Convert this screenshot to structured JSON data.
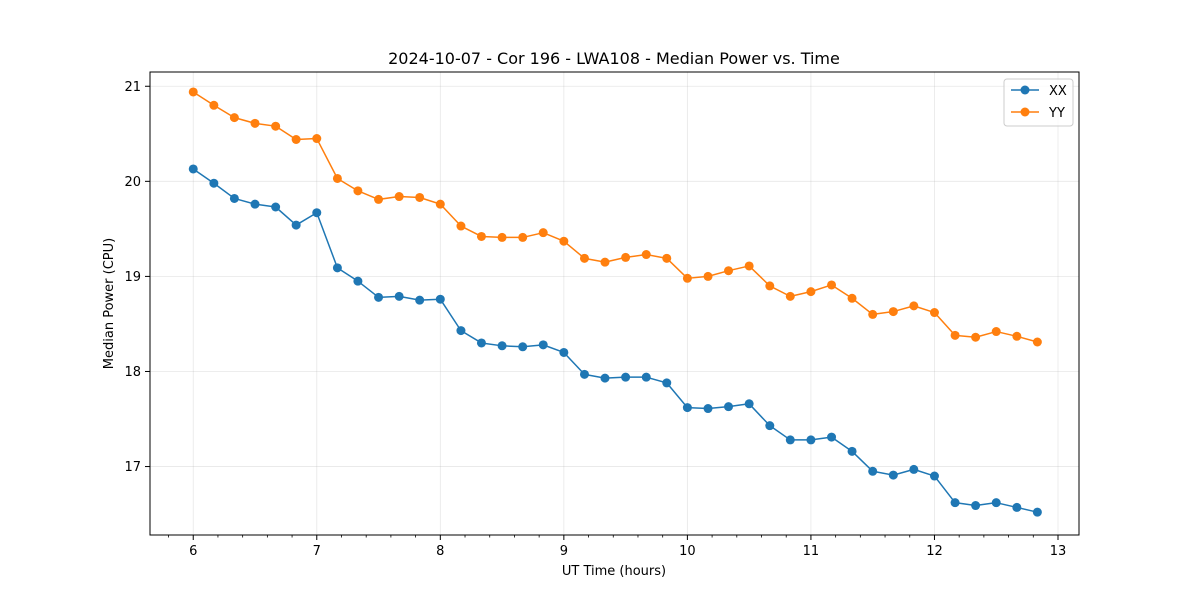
{
  "chart_data": {
    "type": "line",
    "title": "2024-10-07 - Cor 196 - LWA108 - Median Power vs. Time",
    "xlabel": "UT Time (hours)",
    "ylabel": "Median Power (CPU)",
    "xlim": [
      5.65,
      13.17
    ],
    "ylim": [
      16.28,
      21.15
    ],
    "xticks": [
      6,
      7,
      8,
      9,
      10,
      11,
      12,
      13
    ],
    "yticks": [
      17,
      18,
      19,
      20,
      21
    ],
    "xminor_step": 0.2,
    "grid": true,
    "legend_position": "top-right",
    "x": [
      6.0,
      6.167,
      6.333,
      6.5,
      6.667,
      6.833,
      7.0,
      7.167,
      7.333,
      7.5,
      7.667,
      7.833,
      8.0,
      8.167,
      8.333,
      8.5,
      8.667,
      8.833,
      9.0,
      9.167,
      9.333,
      9.5,
      9.667,
      9.833,
      10.0,
      10.167,
      10.333,
      10.5,
      10.667,
      10.833,
      11.0,
      11.167,
      11.333,
      11.5,
      11.667,
      11.833,
      12.0,
      12.167,
      12.333,
      12.5,
      12.667,
      12.833
    ],
    "series": [
      {
        "name": "XX",
        "color": "#1f77b4",
        "values": [
          20.13,
          19.98,
          19.82,
          19.76,
          19.73,
          19.54,
          19.67,
          19.09,
          18.95,
          18.78,
          18.79,
          18.75,
          18.76,
          18.43,
          18.3,
          18.27,
          18.26,
          18.28,
          18.2,
          17.97,
          17.93,
          17.94,
          17.94,
          17.88,
          17.62,
          17.61,
          17.63,
          17.66,
          17.43,
          17.28,
          17.28,
          17.31,
          17.16,
          16.95,
          16.91,
          16.97,
          16.9,
          16.62,
          16.59,
          16.62,
          16.57,
          16.52
        ]
      },
      {
        "name": "YY",
        "color": "#ff7f0e",
        "values": [
          20.94,
          20.8,
          20.67,
          20.61,
          20.58,
          20.44,
          20.45,
          20.03,
          19.9,
          19.81,
          19.84,
          19.83,
          19.76,
          19.53,
          19.42,
          19.41,
          19.41,
          19.46,
          19.37,
          19.19,
          19.15,
          19.2,
          19.23,
          19.19,
          18.98,
          19.0,
          19.06,
          19.11,
          18.9,
          18.79,
          18.84,
          18.91,
          18.77,
          18.6,
          18.63,
          18.69,
          18.62,
          18.38,
          18.36,
          18.42,
          18.37,
          18.31
        ]
      }
    ]
  }
}
